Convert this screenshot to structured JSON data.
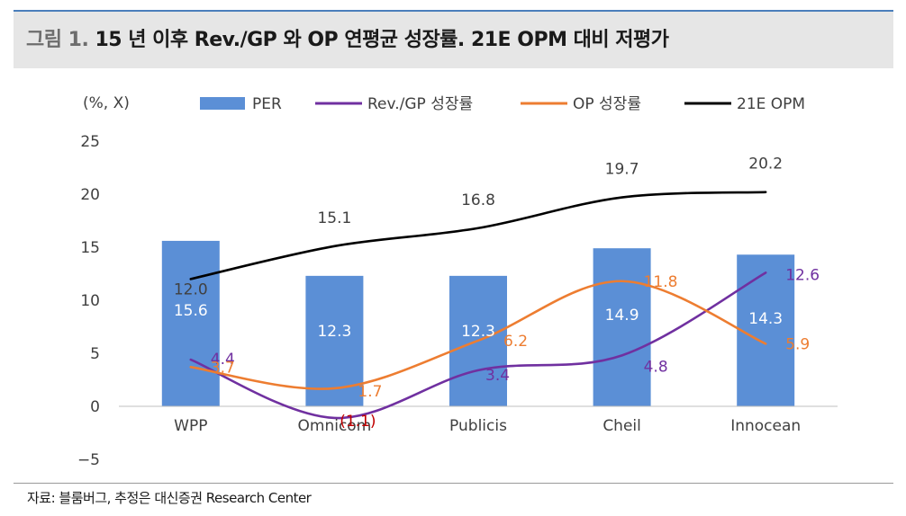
{
  "header": {
    "figure_label": "그림 1.",
    "title": "15 년 이후 Rev./GP 와 OP 연평균 성장률. 21E OPM 대비 저평가"
  },
  "source": "자료: 블룸버그, 추정은 대신증권 Research Center",
  "colors": {
    "bar": "#5b8fd6",
    "rev_gp": "#7030a0",
    "op": "#ed7d31",
    "opm": "#000000",
    "neg_label": "#c00000",
    "rule": "#4a7ebb"
  },
  "chart_data": {
    "type": "bar",
    "unit_label": "(%, X)",
    "categories": [
      "WPP",
      "Omnicom",
      "Publicis",
      "Cheil",
      "Innocean"
    ],
    "ylim": [
      -5,
      25
    ],
    "yticks": [
      -5,
      0,
      5,
      10,
      15,
      20,
      25
    ],
    "ytick_labels": [
      "−5",
      "0",
      "5",
      "10",
      "15",
      "20",
      "25"
    ],
    "grid": false,
    "legend_position": "top",
    "series": [
      {
        "name": "PER",
        "kind": "bar",
        "values": [
          15.6,
          12.3,
          12.3,
          14.9,
          14.3
        ],
        "labels": [
          "15.6",
          "12.3",
          "12.3",
          "14.9",
          "14.3"
        ]
      },
      {
        "name": "Rev./GP 성장률",
        "kind": "line",
        "values": [
          4.4,
          -1.1,
          3.4,
          4.8,
          12.6
        ],
        "labels": [
          "4.4",
          "(1.1)",
          "3.4",
          "4.8",
          "12.6"
        ]
      },
      {
        "name": "OP 성장률",
        "kind": "line",
        "values": [
          3.7,
          1.7,
          6.2,
          11.8,
          5.9
        ],
        "labels": [
          "3.7",
          "1.7",
          "6.2",
          "11.8",
          "5.9"
        ]
      },
      {
        "name": "21E OPM",
        "kind": "line",
        "values": [
          12.0,
          15.1,
          16.8,
          19.7,
          20.2
        ],
        "labels": [
          "12.0",
          "15.1",
          "16.8",
          "19.7",
          "20.2"
        ]
      }
    ]
  }
}
